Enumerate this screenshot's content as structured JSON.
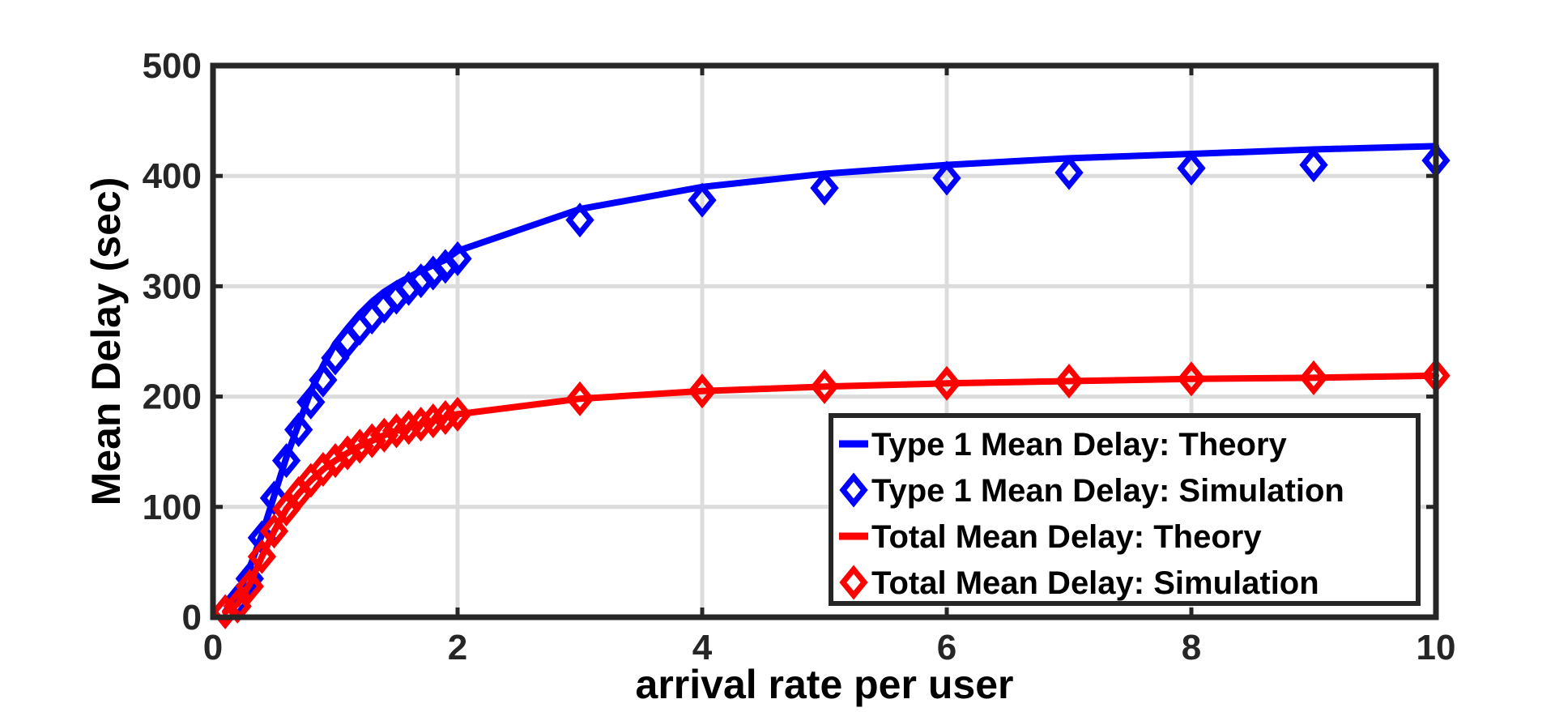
{
  "chart_data": {
    "type": "line",
    "title": "",
    "xlabel": "arrival rate per user",
    "ylabel": "Mean Delay (sec)",
    "xlim": [
      0,
      10
    ],
    "ylim": [
      0,
      500
    ],
    "xticks": [
      0,
      2,
      4,
      6,
      8,
      10
    ],
    "yticks": [
      0,
      100,
      200,
      300,
      400,
      500
    ],
    "grid": true,
    "legend_position": "bottom-right",
    "series": [
      {
        "name": "Type 1 Mean Delay: Theory",
        "style": "line",
        "color": "#0000FF",
        "x": [
          0.1,
          0.2,
          0.3,
          0.4,
          0.5,
          0.6,
          0.7,
          0.8,
          0.9,
          1.0,
          1.1,
          1.2,
          1.3,
          1.4,
          1.5,
          1.6,
          1.7,
          1.8,
          1.9,
          2.0,
          3,
          4,
          5,
          6,
          7,
          8,
          9,
          10
        ],
        "y": [
          5,
          20,
          45,
          75,
          110,
          145,
          175,
          205,
          228,
          248,
          262,
          275,
          286,
          295,
          302,
          308,
          314,
          319,
          324,
          332,
          370,
          390,
          402,
          410,
          416,
          420,
          424,
          427
        ]
      },
      {
        "name": "Type 1 Mean Delay: Simulation",
        "style": "diamond",
        "color": "#0000FF",
        "x": [
          0.1,
          0.2,
          0.3,
          0.4,
          0.5,
          0.6,
          0.7,
          0.8,
          0.9,
          1.0,
          1.1,
          1.2,
          1.3,
          1.4,
          1.5,
          1.6,
          1.7,
          1.8,
          1.9,
          2.0,
          3,
          4,
          5,
          6,
          7,
          8,
          9,
          10
        ],
        "y": [
          5,
          15,
          35,
          72,
          108,
          142,
          170,
          195,
          215,
          235,
          250,
          262,
          272,
          282,
          290,
          298,
          305,
          312,
          318,
          325,
          360,
          378,
          389,
          398,
          403,
          407,
          410,
          414
        ]
      },
      {
        "name": "Total Mean Delay: Theory",
        "style": "line",
        "color": "#FF0000",
        "x": [
          0.1,
          0.2,
          0.3,
          0.4,
          0.5,
          0.6,
          0.7,
          0.8,
          0.9,
          1.0,
          1.1,
          1.2,
          1.3,
          1.4,
          1.5,
          1.6,
          1.7,
          1.8,
          1.9,
          2.0,
          3,
          4,
          5,
          6,
          7,
          8,
          9,
          10
        ],
        "y": [
          5,
          12,
          30,
          55,
          78,
          98,
          112,
          124,
          134,
          142,
          149,
          155,
          160,
          165,
          169,
          172,
          175,
          178,
          181,
          184,
          198,
          205,
          209,
          212,
          214,
          216,
          217,
          219
        ]
      },
      {
        "name": "Total Mean Delay: Simulation",
        "style": "diamond",
        "color": "#FF0000",
        "x": [
          0.1,
          0.2,
          0.3,
          0.4,
          0.5,
          0.6,
          0.7,
          0.8,
          0.9,
          1.0,
          1.1,
          1.2,
          1.3,
          1.4,
          1.5,
          1.6,
          1.7,
          1.8,
          1.9,
          2.0,
          3,
          4,
          5,
          6,
          7,
          8,
          9,
          10
        ],
        "y": [
          5,
          10,
          28,
          55,
          78,
          98,
          112,
          124,
          134,
          142,
          149,
          155,
          160,
          165,
          169,
          172,
          175,
          178,
          181,
          184,
          198,
          205,
          209,
          212,
          214,
          216,
          217,
          219
        ]
      }
    ]
  }
}
